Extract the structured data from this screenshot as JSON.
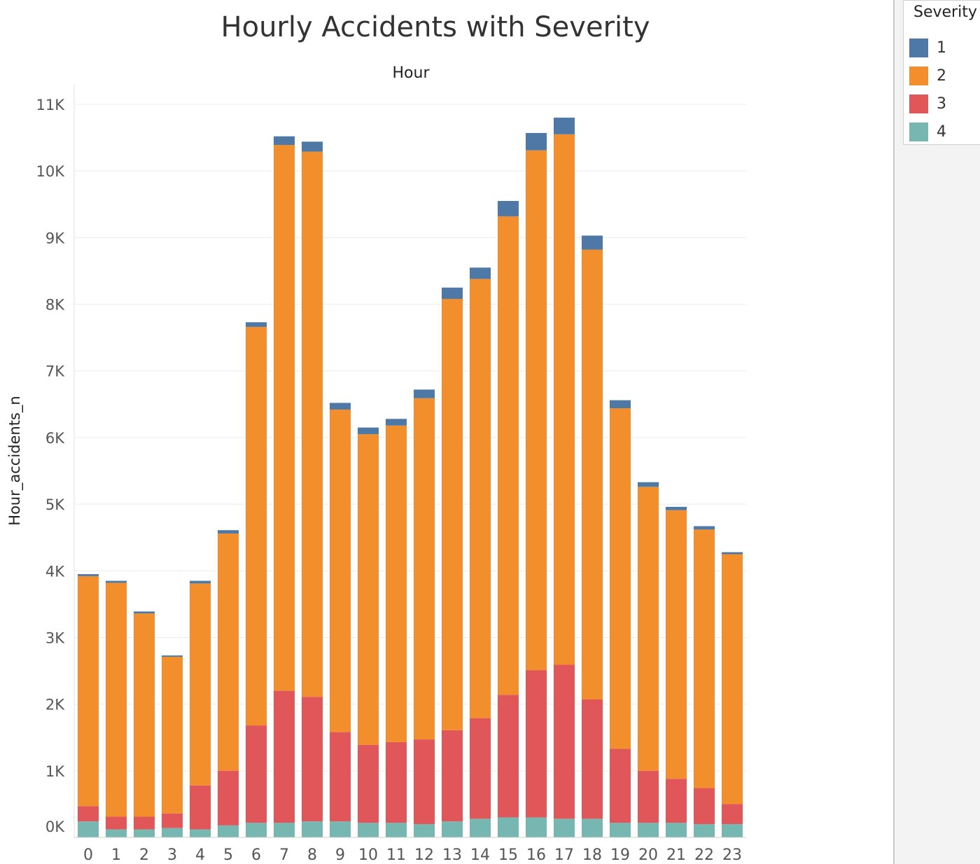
{
  "chart_data": {
    "type": "bar",
    "stacked": true,
    "title": "Hourly Accidents with Severity",
    "column_header": "Hour",
    "xlabel": "",
    "ylabel": "Hour_accidents_n",
    "ylim": [
      0,
      11000
    ],
    "yticks": [
      0,
      1000,
      2000,
      3000,
      4000,
      5000,
      6000,
      7000,
      8000,
      9000,
      10000,
      11000
    ],
    "ytick_labels": [
      "0K",
      "1K",
      "2K",
      "3K",
      "4K",
      "5K",
      "6K",
      "7K",
      "8K",
      "9K",
      "10K",
      "11K"
    ],
    "grid": true,
    "legend_position": "right",
    "legend_title": "Severity",
    "categories": [
      "0",
      "1",
      "2",
      "3",
      "4",
      "5",
      "6",
      "7",
      "8",
      "9",
      "10",
      "11",
      "12",
      "13",
      "14",
      "15",
      "16",
      "17",
      "18",
      "19",
      "20",
      "21",
      "22",
      "23"
    ],
    "series": [
      {
        "name": "4",
        "color": "#76b7b2",
        "values": [
          240,
          120,
          120,
          140,
          120,
          180,
          220,
          220,
          240,
          240,
          220,
          220,
          200,
          240,
          280,
          300,
          300,
          280,
          280,
          220,
          220,
          220,
          200,
          200
        ]
      },
      {
        "name": "3",
        "color": "#e15759",
        "values": [
          230,
          190,
          190,
          220,
          660,
          820,
          1460,
          1980,
          1870,
          1340,
          1170,
          1210,
          1270,
          1370,
          1510,
          1840,
          2210,
          2310,
          1790,
          1110,
          780,
          660,
          540,
          300
        ]
      },
      {
        "name": "2",
        "color": "#f28e2b",
        "values": [
          3450,
          3510,
          3050,
          2350,
          3030,
          3560,
          5980,
          8190,
          8180,
          4840,
          4660,
          4750,
          5120,
          6470,
          6590,
          7180,
          7800,
          7960,
          6750,
          5110,
          4260,
          4030,
          3880,
          3750
        ]
      },
      {
        "name": "1",
        "color": "#4e79a7",
        "values": [
          30,
          30,
          30,
          20,
          40,
          50,
          70,
          130,
          150,
          100,
          100,
          100,
          130,
          170,
          170,
          230,
          260,
          250,
          210,
          120,
          70,
          50,
          50,
          30
        ]
      }
    ]
  }
}
